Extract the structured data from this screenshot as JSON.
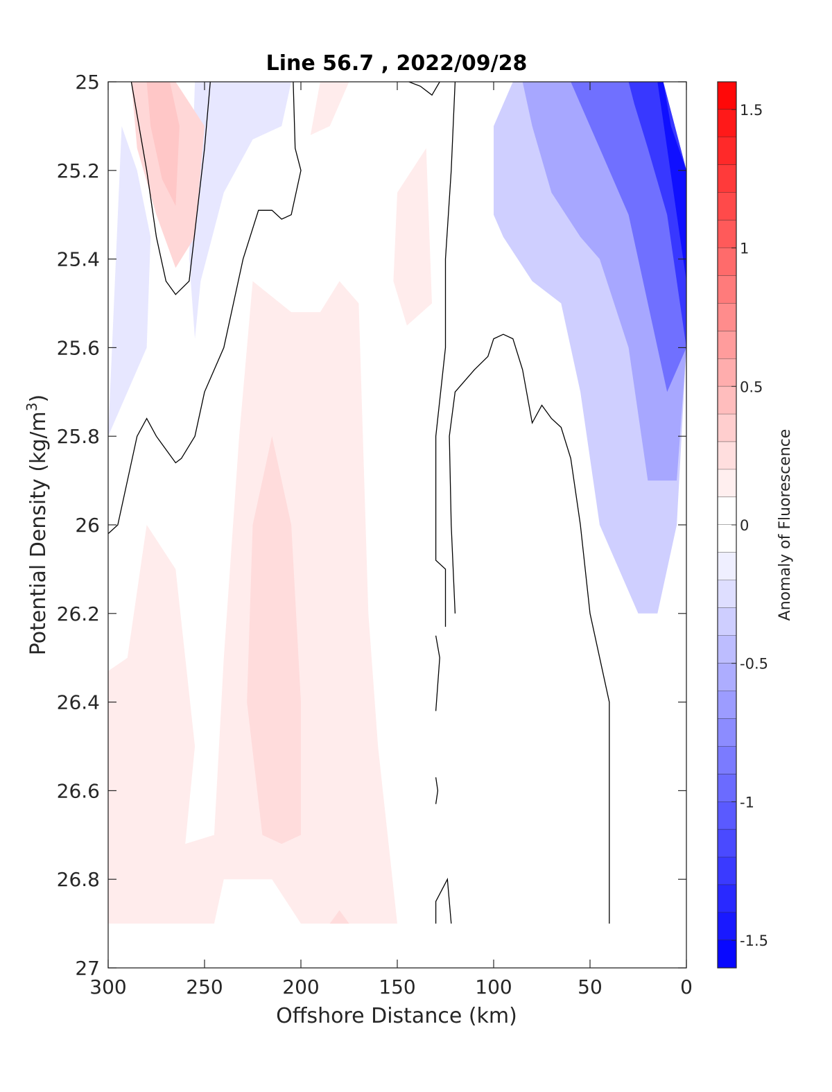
{
  "chart_data": {
    "type": "heatmap",
    "subtype": "filled-contour",
    "title": "Line 56.7 , 2022/09/28",
    "xlabel": "Offshore Distance (km)",
    "ylabel_prefix": "Potential Density (kg/m",
    "ylabel_superscript": "3",
    "ylabel_suffix": ")",
    "xlim": [
      300,
      0
    ],
    "x_reversed": true,
    "ylim": [
      25,
      27
    ],
    "y_reversed": true,
    "xticks": [
      300,
      250,
      200,
      150,
      100,
      50,
      0
    ],
    "yticks": [
      25,
      25.2,
      25.4,
      25.6,
      25.8,
      26,
      26.2,
      26.4,
      26.6,
      26.8,
      27
    ],
    "ytick_labels": [
      "25",
      "25.2",
      "25.4",
      "25.6",
      "25.8",
      "26",
      "26.2",
      "26.4",
      "26.6",
      "26.8",
      "27"
    ],
    "grid": false,
    "colorbar": {
      "label": "Anomaly of Fluorescence",
      "range": [
        -1.6,
        1.6
      ],
      "levels": 32,
      "ticks": [
        1.5,
        1,
        0.5,
        0,
        -0.5,
        -1,
        -1.5
      ],
      "tick_labels": [
        "1.5",
        "1",
        "0.5",
        "0",
        "-0.5",
        "-1",
        "-1.5"
      ],
      "colormap": "blue-white-red",
      "low_color": "#0000ff",
      "mid_color": "#ffffff",
      "high_color": "#ff0000"
    },
    "regions": [
      {
        "name": "nearshore negative anomaly",
        "value": -0.3,
        "points": [
          [
            90,
            25
          ],
          [
            12,
            25
          ],
          [
            0,
            25.2
          ],
          [
            0,
            25.6
          ],
          [
            5,
            26
          ],
          [
            15,
            26.2
          ],
          [
            25,
            26.2
          ],
          [
            45,
            26
          ],
          [
            55,
            25.7
          ],
          [
            65,
            25.5
          ],
          [
            80,
            25.45
          ],
          [
            95,
            25.35
          ],
          [
            100,
            25.3
          ],
          [
            100,
            25.1
          ]
        ]
      },
      {
        "name": "nearshore negative anomaly",
        "value": -0.55,
        "points": [
          [
            85,
            25
          ],
          [
            12,
            25
          ],
          [
            0,
            25.2
          ],
          [
            0,
            25.6
          ],
          [
            5,
            25.9
          ],
          [
            20,
            25.9
          ],
          [
            30,
            25.6
          ],
          [
            45,
            25.4
          ],
          [
            55,
            25.35
          ],
          [
            70,
            25.25
          ],
          [
            80,
            25.1
          ]
        ]
      },
      {
        "name": "nearshore negative anomaly",
        "value": -0.9,
        "points": [
          [
            60,
            25
          ],
          [
            12,
            25
          ],
          [
            0,
            25.2
          ],
          [
            0,
            25.6
          ],
          [
            10,
            25.7
          ],
          [
            20,
            25.5
          ],
          [
            30,
            25.3
          ],
          [
            45,
            25.15
          ],
          [
            55,
            25.05
          ]
        ]
      },
      {
        "name": "nearshore negative anomaly",
        "value": -1.25,
        "points": [
          [
            30,
            25
          ],
          [
            12,
            25
          ],
          [
            0,
            25.2
          ],
          [
            0,
            25.6
          ],
          [
            5,
            25.45
          ],
          [
            10,
            25.3
          ],
          [
            20,
            25.15
          ],
          [
            27,
            25.05
          ]
        ]
      },
      {
        "name": "nearshore negative anomaly",
        "value": -1.5,
        "points": [
          [
            15,
            25
          ],
          [
            12,
            25
          ],
          [
            8,
            25.1
          ],
          [
            0,
            25.2
          ],
          [
            0,
            25.45
          ],
          [
            5,
            25.3
          ],
          [
            10,
            25.15
          ]
        ]
      },
      {
        "name": "offshore negative anomaly",
        "value": -0.15,
        "points": [
          [
            293,
            25.1
          ],
          [
            300,
            25.8
          ],
          [
            290,
            25.7
          ],
          [
            280,
            25.6
          ],
          [
            278,
            25.35
          ],
          [
            285,
            25.2
          ]
        ]
      },
      {
        "name": "offshore negative anomaly",
        "value": -0.15,
        "points": [
          [
            255,
            25
          ],
          [
            205,
            25
          ],
          [
            210,
            25.1
          ],
          [
            225,
            25.13
          ],
          [
            240,
            25.25
          ],
          [
            252,
            25.45
          ],
          [
            255,
            25.58
          ],
          [
            258,
            25.4
          ]
        ]
      },
      {
        "name": "offshore positive anomaly",
        "value": 0.25,
        "points": [
          [
            288,
            25
          ],
          [
            265,
            25
          ],
          [
            250,
            25.1
          ],
          [
            255,
            25.35
          ],
          [
            265,
            25.42
          ],
          [
            275,
            25.3
          ],
          [
            285,
            25.15
          ]
        ]
      },
      {
        "name": "offshore positive anomaly",
        "value": 0.35,
        "points": [
          [
            280,
            25
          ],
          [
            268,
            25
          ],
          [
            263,
            25.1
          ],
          [
            265,
            25.28
          ],
          [
            272,
            25.22
          ],
          [
            278,
            25.1
          ]
        ]
      },
      {
        "name": "upper positive anomaly",
        "value": 0.12,
        "points": [
          [
            190,
            25
          ],
          [
            175,
            25
          ],
          [
            185,
            25.1
          ],
          [
            195,
            25.12
          ]
        ]
      },
      {
        "name": "upper positive anomaly",
        "value": 0.12,
        "points": [
          [
            135,
            25.15
          ],
          [
            150,
            25.25
          ],
          [
            152,
            25.45
          ],
          [
            145,
            25.55
          ],
          [
            132,
            25.5
          ]
        ]
      },
      {
        "name": "mid-section positive anomaly",
        "value": 0.12,
        "points": [
          [
            225,
            25.45
          ],
          [
            205,
            25.52
          ],
          [
            190,
            25.52
          ],
          [
            180,
            25.45
          ],
          [
            170,
            25.5
          ],
          [
            165,
            26.2
          ],
          [
            160,
            26.5
          ],
          [
            155,
            26.7
          ],
          [
            150,
            26.9
          ],
          [
            200,
            26.9
          ],
          [
            215,
            26.8
          ],
          [
            240,
            26.8
          ],
          [
            245,
            26.9
          ],
          [
            300,
            26.9
          ],
          [
            300,
            26.33
          ],
          [
            290,
            26.3
          ],
          [
            280,
            26
          ],
          [
            265,
            26.1
          ],
          [
            255,
            26.5
          ],
          [
            260,
            26.72
          ],
          [
            245,
            26.7
          ],
          [
            240,
            26.3
          ],
          [
            232,
            25.8
          ]
        ]
      },
      {
        "name": "mid-section positive anomaly",
        "value": 0.22,
        "points": [
          [
            215,
            25.8
          ],
          [
            205,
            26
          ],
          [
            200,
            26.4
          ],
          [
            200,
            26.7
          ],
          [
            210,
            26.72
          ],
          [
            220,
            26.7
          ],
          [
            228,
            26.4
          ],
          [
            225,
            26
          ]
        ]
      },
      {
        "name": "bottom positive anomaly",
        "value": 0.22,
        "points": [
          [
            185,
            26.9
          ],
          [
            175,
            26.9
          ],
          [
            180,
            26.87
          ]
        ]
      }
    ],
    "contour_lines": [
      {
        "level": 0,
        "points": [
          [
            288,
            25
          ],
          [
            280,
            25.2
          ],
          [
            275,
            25.35
          ],
          [
            270,
            25.45
          ],
          [
            265,
            25.48
          ],
          [
            258,
            25.45
          ],
          [
            254,
            25.3
          ],
          [
            250,
            25.15
          ],
          [
            247,
            25
          ]
        ]
      },
      {
        "level": 0,
        "points": [
          [
            204,
            25
          ],
          [
            203,
            25.15
          ],
          [
            200,
            25.2
          ],
          [
            205,
            25.3
          ],
          [
            210,
            25.31
          ],
          [
            215,
            25.29
          ],
          [
            222,
            25.29
          ],
          [
            230,
            25.4
          ],
          [
            240,
            25.6
          ],
          [
            250,
            25.7
          ],
          [
            255,
            25.8
          ],
          [
            262,
            25.85
          ],
          [
            265,
            25.86
          ],
          [
            270,
            25.83
          ],
          [
            275,
            25.8
          ],
          [
            280,
            25.76
          ],
          [
            285,
            25.8
          ],
          [
            290,
            25.9
          ],
          [
            295,
            26
          ],
          [
            300,
            26.02
          ]
        ]
      },
      {
        "level": 0,
        "points": [
          [
            120,
            25
          ],
          [
            122,
            25.2
          ],
          [
            125,
            25.4
          ],
          [
            125,
            25.6
          ],
          [
            130,
            25.8
          ],
          [
            130,
            26.08
          ],
          [
            125,
            26.1
          ],
          [
            125,
            26.23
          ]
        ]
      },
      {
        "level": 0,
        "points": [
          [
            128,
            25
          ],
          [
            132,
            25.03
          ],
          [
            138,
            25.01
          ],
          [
            144,
            25
          ]
        ]
      },
      {
        "level": 0,
        "points": [
          [
            130,
            26.25
          ],
          [
            128,
            26.3
          ],
          [
            130,
            26.42
          ]
        ]
      },
      {
        "level": 0,
        "points": [
          [
            130,
            26.57
          ],
          [
            129,
            26.6
          ],
          [
            130,
            26.63
          ]
        ]
      },
      {
        "level": 0,
        "points": [
          [
            130,
            26.9
          ],
          [
            130,
            26.85
          ],
          [
            124,
            26.8
          ],
          [
            122,
            26.9
          ]
        ]
      },
      {
        "level": 0,
        "points": [
          [
            120,
            26.2
          ],
          [
            122,
            26
          ],
          [
            123,
            25.8
          ],
          [
            120,
            25.7
          ],
          [
            110,
            25.65
          ],
          [
            103,
            25.62
          ],
          [
            100,
            25.58
          ],
          [
            95,
            25.57
          ],
          [
            90,
            25.58
          ],
          [
            85,
            25.65
          ],
          [
            80,
            25.77
          ],
          [
            75,
            25.73
          ],
          [
            70,
            25.76
          ],
          [
            65,
            25.78
          ],
          [
            60,
            25.85
          ],
          [
            55,
            26
          ],
          [
            50,
            26.2
          ],
          [
            45,
            26.3
          ],
          [
            40,
            26.4
          ],
          [
            40,
            26.9
          ]
        ]
      }
    ]
  }
}
